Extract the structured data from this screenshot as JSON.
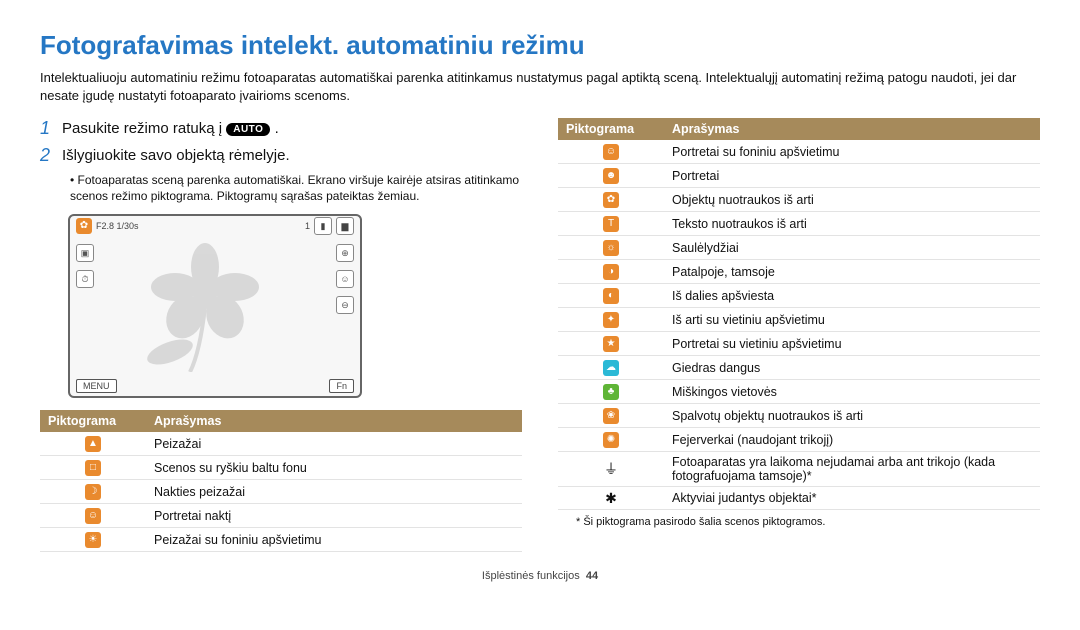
{
  "title": "Fotografavimas intelekt. automatiniu režimu",
  "intro": "Intelektualiuoju automatiniu režimu fotoaparatas automatiškai parenka atitinkamus nustatymus pagal aptiktą sceną. Intelektualųjį automatinį režimą patogu naudoti, jei dar nesate įgudę nustatyti fotoaparato įvairioms scenoms.",
  "step1": {
    "num": "1",
    "text_a": "Pasukite režimo ratuką į ",
    "badge": "AUTO",
    "text_b": " ."
  },
  "step2": {
    "num": "2",
    "text": "Išlygiuokite savo objektą rėmelyje."
  },
  "bullet1": "Fotoaparatas sceną parenka automatiškai. Ekrano viršuje kairėje atsiras atitinkamo scenos režimo piktograma. Piktogramų sąrašas pateiktas žemiau.",
  "lcd": {
    "exposure": "F2.8 1/30s",
    "count": "1",
    "menu": "MENU",
    "fn": "Fn"
  },
  "headers": {
    "c1": "Piktograma",
    "c2": "Aprašymas"
  },
  "left_rows": [
    {
      "color": "#e98a2e",
      "glyph": "▲",
      "text": "Peizažai"
    },
    {
      "color": "#e98a2e",
      "glyph": "□",
      "text": "Scenos su ryškiu baltu fonu"
    },
    {
      "color": "#e98a2e",
      "glyph": "☽",
      "text": "Nakties peizažai"
    },
    {
      "color": "#e98a2e",
      "glyph": "☺",
      "text": "Portretai naktį"
    },
    {
      "color": "#e98a2e",
      "glyph": "☀",
      "text": "Peizažai su foniniu apšvietimu"
    }
  ],
  "right_rows": [
    {
      "color": "#e98a2e",
      "glyph": "☺",
      "text": "Portretai su foniniu apšvietimu"
    },
    {
      "color": "#e98a2e",
      "glyph": "☻",
      "text": "Portretai"
    },
    {
      "color": "#e98a2e",
      "glyph": "✿",
      "text": "Objektų nuotraukos iš arti"
    },
    {
      "color": "#e98a2e",
      "glyph": "T",
      "text": "Teksto nuotraukos iš arti"
    },
    {
      "color": "#e98a2e",
      "glyph": "☼",
      "text": "Saulėlydžiai"
    },
    {
      "color": "#e98a2e",
      "glyph": "◑",
      "text": "Patalpoje, tamsoje"
    },
    {
      "color": "#e98a2e",
      "glyph": "◐",
      "text": "Iš dalies apšviesta"
    },
    {
      "color": "#e98a2e",
      "glyph": "✦",
      "text": "Iš arti su vietiniu apšvietimu"
    },
    {
      "color": "#e98a2e",
      "glyph": "★",
      "text": "Portretai su vietiniu apšvietimu"
    },
    {
      "color": "#2bb9d6",
      "glyph": "☁",
      "text": "Giedras dangus"
    },
    {
      "color": "#5fb536",
      "glyph": "♣",
      "text": "Miškingos vietovės"
    },
    {
      "color": "#e98a2e",
      "glyph": "❀",
      "text": "Spalvotų objektų nuotraukos iš arti"
    },
    {
      "color": "#e98a2e",
      "glyph": "✺",
      "text": "Fejerverkai (naudojant trikojį)"
    },
    {
      "color": "#111111",
      "glyph": "⏚",
      "text": "Fotoaparatas yra laikoma nejudamai arba ant trikojo (kada fotografuojama tamsoje)*"
    },
    {
      "color": "#111111",
      "glyph": "✱",
      "text": "Aktyviai judantys objektai*"
    }
  ],
  "footnote": "* Ši piktograma pasirodo šalia scenos piktogramos.",
  "footer": {
    "label": "Išplėstinės funkcijos",
    "page": "44"
  }
}
